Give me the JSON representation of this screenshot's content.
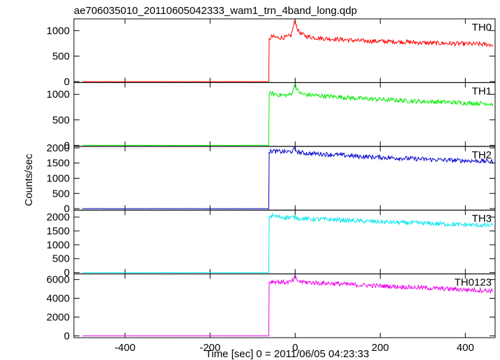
{
  "chart_data": {
    "type": "line",
    "title": "ae706035010_20110605042333_wam1_trn_4band_long.qdp",
    "xlabel": "Time [sec] 0 = 2011/06/05 04:23:33",
    "ylabel": "Counts/sec",
    "xlim": [
      -520,
      470
    ],
    "xticks": [
      -400,
      -200,
      0,
      200,
      400
    ],
    "grid": false,
    "panels": [
      {
        "name": "TH0",
        "color": "#ff0000",
        "ylim": [
          -20,
          1230
        ],
        "yticks": [
          0,
          500,
          1000
        ],
        "x": [
          -500,
          -62,
          -61,
          -55,
          -40,
          -20,
          -10,
          -5,
          0,
          3,
          8,
          15,
          30,
          60,
          100,
          150,
          200,
          250,
          300,
          350,
          400,
          450,
          465
        ],
        "y": [
          0,
          0,
          840,
          880,
          860,
          870,
          900,
          1050,
          1200,
          1100,
          980,
          930,
          880,
          850,
          830,
          800,
          790,
          780,
          760,
          750,
          740,
          730,
          720
        ]
      },
      {
        "name": "TH1",
        "color": "#00ee00",
        "ylim": [
          -20,
          1230
        ],
        "yticks": [
          0,
          500,
          1000
        ],
        "x": [
          -500,
          -62,
          -61,
          -55,
          -40,
          -20,
          -10,
          -5,
          0,
          3,
          8,
          15,
          30,
          60,
          100,
          150,
          200,
          250,
          300,
          350,
          400,
          450,
          465
        ],
        "y": [
          0,
          0,
          1000,
          1020,
          990,
          980,
          1000,
          1080,
          1230,
          1130,
          1050,
          1010,
          990,
          970,
          950,
          920,
          900,
          880,
          860,
          850,
          830,
          820,
          810
        ]
      },
      {
        "name": "TH2",
        "color": "#0000cc",
        "ylim": [
          -50,
          2050
        ],
        "yticks": [
          0,
          500,
          1000,
          1500,
          2000
        ],
        "x": [
          -500,
          -62,
          -61,
          -55,
          -40,
          -20,
          -10,
          -5,
          0,
          3,
          8,
          15,
          30,
          60,
          100,
          150,
          200,
          250,
          300,
          350,
          400,
          450,
          465
        ],
        "y": [
          0,
          0,
          1850,
          1900,
          1880,
          1870,
          1880,
          1920,
          1960,
          1900,
          1860,
          1840,
          1820,
          1800,
          1770,
          1720,
          1690,
          1660,
          1630,
          1600,
          1580,
          1560,
          1550
        ]
      },
      {
        "name": "TH3",
        "color": "#00e5ee",
        "ylim": [
          -50,
          2250
        ],
        "yticks": [
          0,
          500,
          1000,
          1500,
          2000
        ],
        "x": [
          -500,
          -62,
          -61,
          -55,
          -40,
          -20,
          -10,
          -5,
          0,
          3,
          8,
          15,
          30,
          60,
          100,
          150,
          200,
          250,
          300,
          350,
          400,
          450,
          465
        ],
        "y": [
          0,
          0,
          2000,
          2050,
          2010,
          1990,
          1980,
          1990,
          2000,
          1980,
          1960,
          1950,
          1930,
          1920,
          1900,
          1860,
          1830,
          1800,
          1780,
          1750,
          1720,
          1700,
          1690
        ]
      },
      {
        "name": "TH0123",
        "color": "#ee00ee",
        "ylim": [
          -200,
          6600
        ],
        "yticks": [
          0,
          2000,
          4000,
          6000
        ],
        "x": [
          -500,
          -62,
          -61,
          -55,
          -40,
          -20,
          -10,
          -5,
          0,
          3,
          8,
          15,
          30,
          60,
          100,
          150,
          200,
          250,
          300,
          350,
          400,
          450,
          465
        ],
        "y": [
          0,
          0,
          5700,
          5800,
          5750,
          5700,
          5750,
          5900,
          6300,
          6000,
          5850,
          5750,
          5700,
          5620,
          5550,
          5420,
          5320,
          5220,
          5120,
          5020,
          4920,
          4820,
          4780
        ]
      }
    ]
  }
}
